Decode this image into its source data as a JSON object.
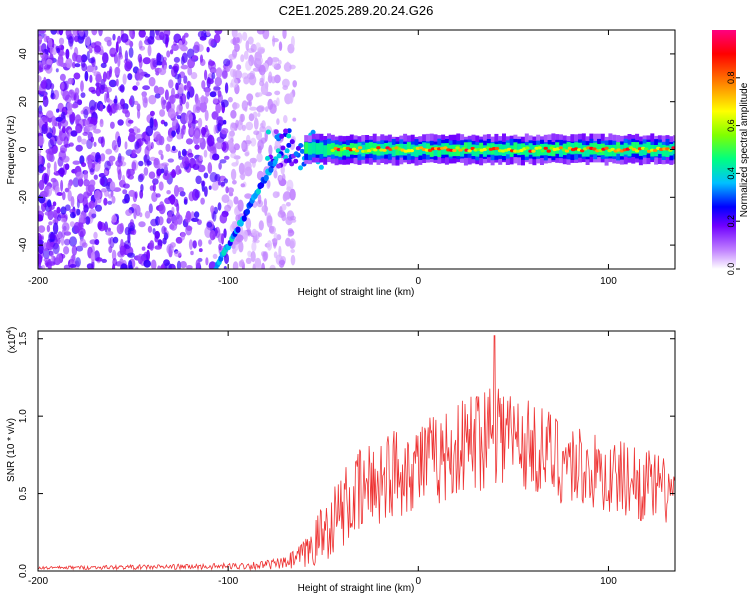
{
  "title": "C2E1.2025.289.20.24.G26",
  "chart_data": [
    {
      "type": "heatmap",
      "xlabel": "Height of straight line (km)",
      "ylabel": "Frequency (Hz)",
      "xlim": [
        -200,
        135
      ],
      "ylim": [
        -50,
        50
      ],
      "x_ticks": [
        "-200",
        "-100",
        "0",
        "100"
      ],
      "y_ticks": [
        "-40",
        "-20",
        "0",
        "20",
        "40"
      ],
      "colorbar": {
        "label": "Normalized spectral amplitude",
        "range": [
          0,
          1
        ],
        "ticks": [
          "0.0",
          "0.2",
          "0.4",
          "0.6",
          "0.8"
        ],
        "colors": [
          "#ffffff",
          "#c080ff",
          "#7000ff",
          "#0000ff",
          "#00c0ff",
          "#00ff80",
          "#80ff00",
          "#ffff00",
          "#ff8000",
          "#ff0000",
          "#ff0080"
        ]
      },
      "features": {
        "noise_region_km": [
          -200,
          -65
        ],
        "diagonal_trace": {
          "from": [
            -108,
            -52
          ],
          "to": [
            -75,
            -4
          ]
        },
        "flat_trace_freq_hz": 0,
        "flat_trace_km": [
          -60,
          135
        ]
      }
    },
    {
      "type": "line",
      "xlabel": "Height of straight line (km)",
      "ylabel": "SNR (10 * v/v)",
      "multiplier_label": "(x10",
      "multiplier_exp": "4",
      "multiplier_close": ")",
      "xlim": [
        -200,
        135
      ],
      "ylim": [
        0,
        1.55
      ],
      "x_ticks": [
        "-200",
        "-100",
        "0",
        "100"
      ],
      "y_ticks": [
        "0.0",
        "0.5",
        "1.0",
        "1.5"
      ],
      "color": "#ee3333",
      "envelope": {
        "x": [
          -200,
          -150,
          -100,
          -80,
          -70,
          -60,
          -50,
          -40,
          -30,
          -20,
          -10,
          0,
          10,
          20,
          30,
          40,
          50,
          60,
          70,
          80,
          90,
          100,
          110,
          120,
          135
        ],
        "mean": [
          0.02,
          0.025,
          0.03,
          0.04,
          0.05,
          0.1,
          0.25,
          0.4,
          0.5,
          0.6,
          0.65,
          0.7,
          0.72,
          0.78,
          0.85,
          0.95,
          0.85,
          0.8,
          0.75,
          0.7,
          0.65,
          0.6,
          0.6,
          0.55,
          0.5
        ],
        "amp": [
          0.01,
          0.015,
          0.02,
          0.03,
          0.04,
          0.1,
          0.2,
          0.25,
          0.3,
          0.3,
          0.3,
          0.3,
          0.3,
          0.3,
          0.35,
          0.4,
          0.35,
          0.3,
          0.3,
          0.3,
          0.25,
          0.25,
          0.25,
          0.25,
          0.2
        ]
      },
      "peak": {
        "x": 40,
        "y": 1.52
      }
    }
  ]
}
